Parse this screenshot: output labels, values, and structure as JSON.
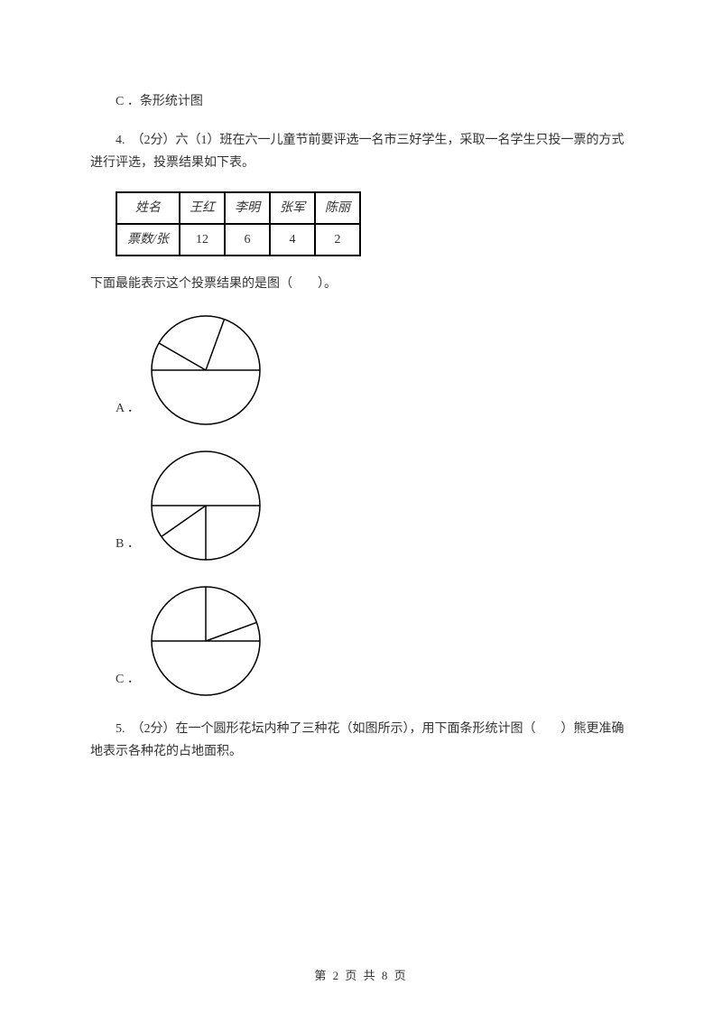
{
  "q3": {
    "option_c": "C ．条形统计图"
  },
  "q4": {
    "stem": "4.　（2分）六（1）班在六一儿童节前要评选一名市三好学生，采取一名学生只投一票的方式进行评选，投票结果如下表。",
    "table": {
      "header_label": "姓名",
      "row_label": "票数/张",
      "columns": [
        "王红",
        "李明",
        "张军",
        "陈丽"
      ],
      "values": [
        "12",
        "6",
        "4",
        "2"
      ],
      "border_color": "#000000"
    },
    "subtext": "下面最能表示这个投票结果的是图（　　）。",
    "options": {
      "A": {
        "label": "A ．",
        "pie": {
          "type": "pie",
          "radius": 60,
          "stroke": "#000000",
          "stroke_width": 1.5,
          "fill": "#ffffff",
          "divider_angles_deg": [
            270,
            300,
            20,
            90
          ]
        }
      },
      "B": {
        "label": "B ．",
        "pie": {
          "type": "pie",
          "radius": 60,
          "stroke": "#000000",
          "stroke_width": 1.5,
          "fill": "#ffffff",
          "divider_angles_deg": [
            90,
            180,
            235,
            270
          ]
        }
      },
      "C": {
        "label": "C ．",
        "pie": {
          "type": "pie",
          "radius": 60,
          "stroke": "#000000",
          "stroke_width": 1.5,
          "fill": "#ffffff",
          "divider_angles_deg": [
            270,
            0,
            70,
            90
          ]
        }
      }
    }
  },
  "q5": {
    "stem": "5.　（2分）在一个圆形花坛内种了三种花（如图所示），用下面条形统计图（　　）熊更准确地表示各种花的占地面积。"
  },
  "footer": "第 2 页 共 8 页"
}
